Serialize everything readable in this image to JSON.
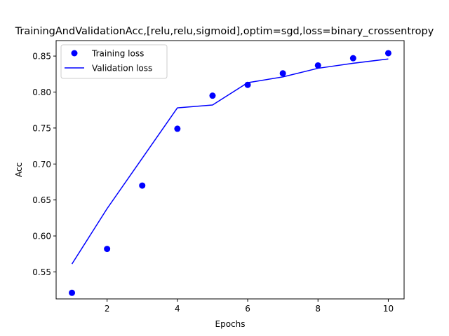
{
  "chart_data": {
    "type": "line",
    "title": "TrainingAndValidationAcc,[relu,relu,sigmoid],optim=sgd,loss=binary_crossentropy",
    "xlabel": "Epochs",
    "ylabel": "Acc",
    "xlim": [
      0.55,
      10.45
    ],
    "ylim": [
      0.5125,
      0.8715
    ],
    "xticks": [
      2,
      4,
      6,
      8,
      10
    ],
    "yticks": [
      0.55,
      0.6,
      0.65,
      0.7,
      0.75,
      0.8,
      0.85
    ],
    "ytick_labels": [
      "0.55",
      "0.60",
      "0.65",
      "0.70",
      "0.75",
      "0.80",
      "0.85"
    ],
    "grid": false,
    "legend": "top-left",
    "x": [
      1,
      2,
      3,
      4,
      5,
      6,
      7,
      8,
      9,
      10
    ],
    "series": [
      {
        "name": "Training loss",
        "style": "markers",
        "color": "#0000ff",
        "values": [
          0.521,
          0.582,
          0.67,
          0.749,
          0.795,
          0.81,
          0.826,
          0.837,
          0.847,
          0.854
        ]
      },
      {
        "name": "Validation loss",
        "style": "line",
        "color": "#0000ff",
        "values": [
          0.561,
          0.638,
          0.708,
          0.778,
          0.782,
          0.813,
          0.821,
          0.833,
          0.84,
          0.846
        ]
      }
    ]
  }
}
